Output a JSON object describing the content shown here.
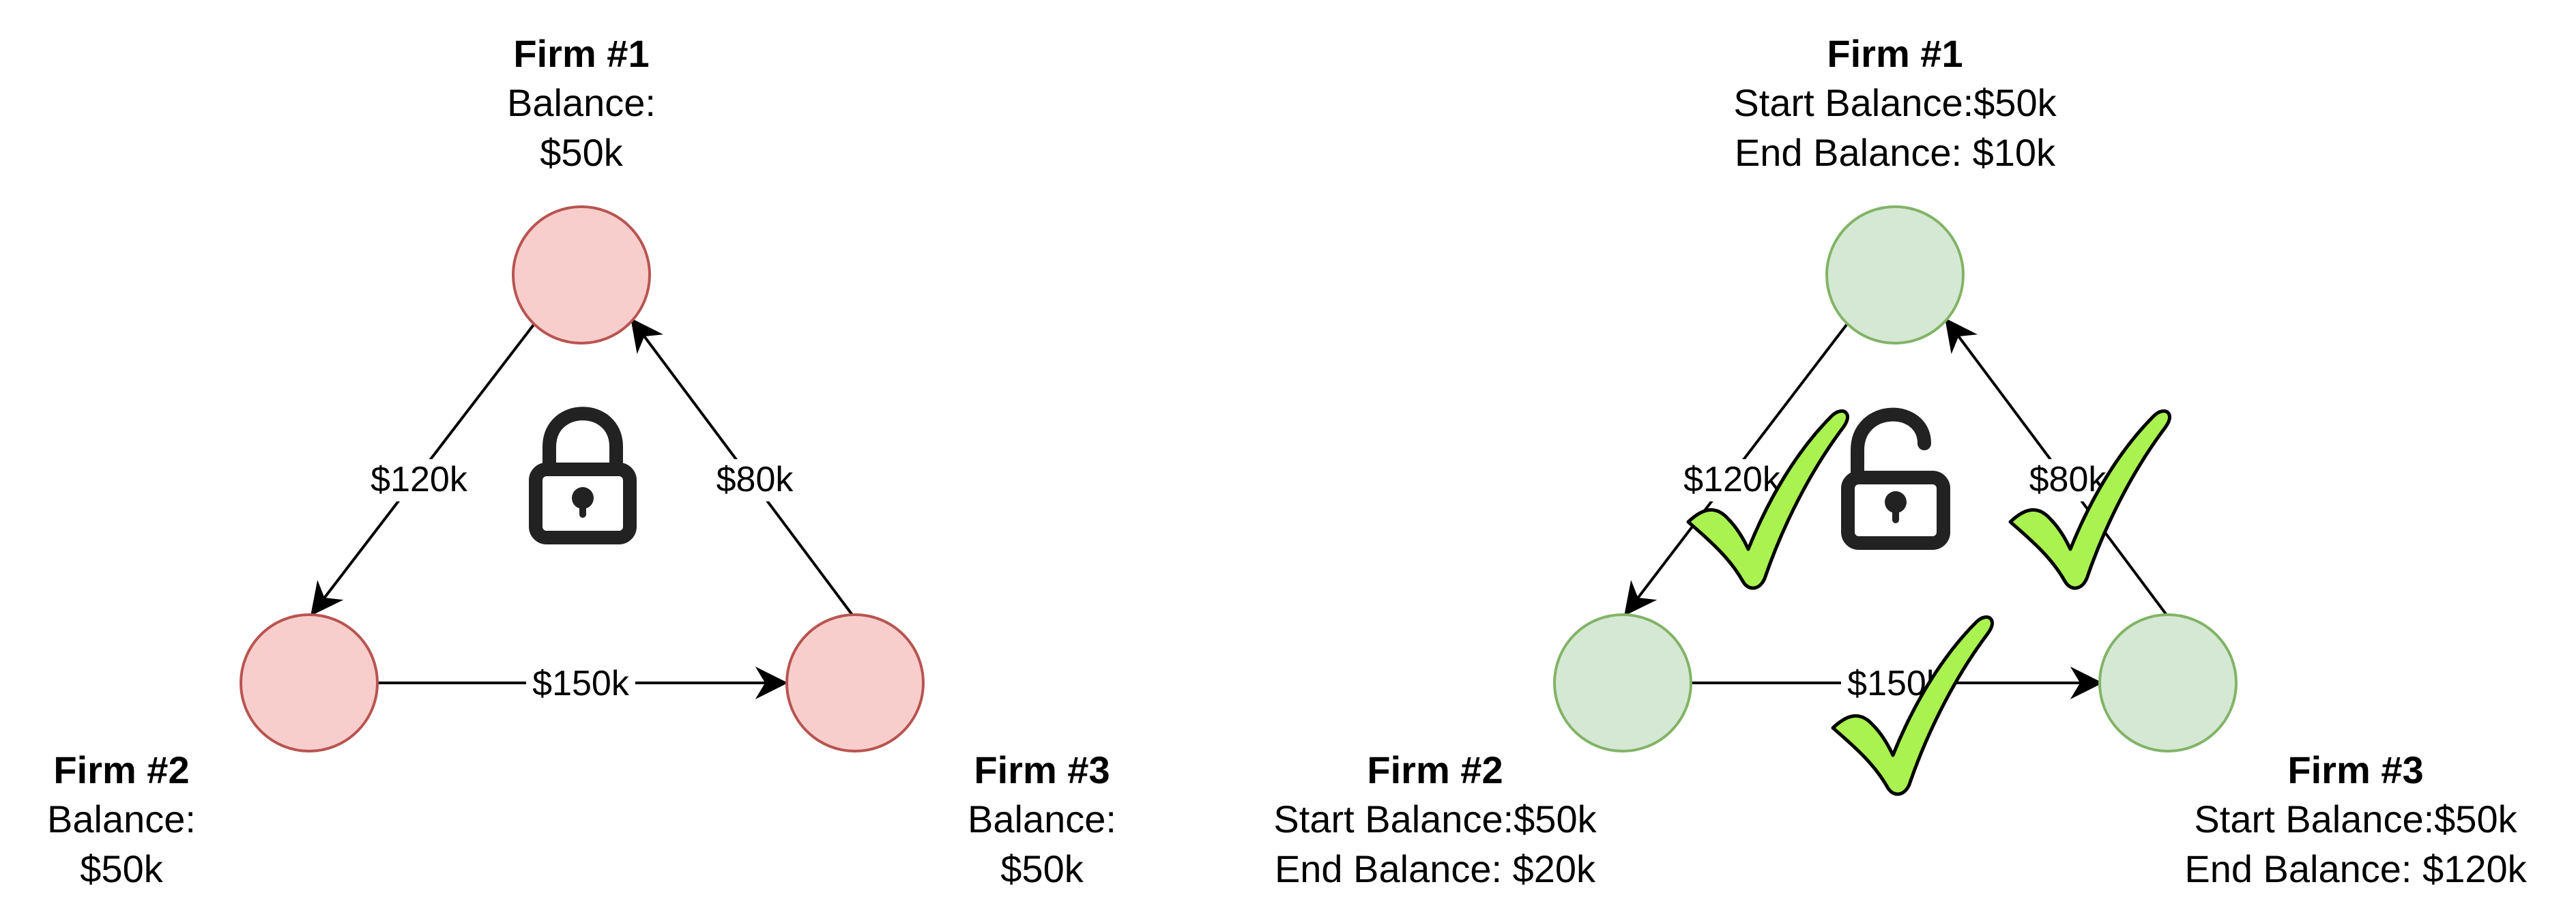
{
  "colors": {
    "locked_fill": "#f8cecc",
    "locked_stroke": "#b85450",
    "settled_fill": "#d5e8d4",
    "settled_stroke": "#82b366",
    "check_fill": "#a9f24f",
    "edge": "#000000",
    "lock_icon": "#222222"
  },
  "left_panel": {
    "lock_icon": "locked-padlock",
    "firms": [
      {
        "name": "Firm #1",
        "line1": "Balance:",
        "line2": "$50k"
      },
      {
        "name": "Firm #2",
        "line1": "Balance:",
        "line2": "$50k"
      },
      {
        "name": "Firm #3",
        "line1": "Balance:",
        "line2": "$50k"
      }
    ],
    "edges": [
      {
        "from": "Firm #1",
        "to": "Firm #2",
        "label": "$120k"
      },
      {
        "from": "Firm #3",
        "to": "Firm #1",
        "label": "$80k"
      },
      {
        "from": "Firm #2",
        "to": "Firm #3",
        "label": "$150k"
      }
    ]
  },
  "right_panel": {
    "lock_icon": "unlocked-padlock",
    "check_icon": "checkmark",
    "firms": [
      {
        "name": "Firm #1",
        "line1": "Start Balance:$50k",
        "line2": "End Balance: $10k"
      },
      {
        "name": "Firm #2",
        "line1": "Start Balance:$50k",
        "line2": "End Balance: $20k"
      },
      {
        "name": "Firm #3",
        "line1": "Start Balance:$50k",
        "line2": "End Balance: $120k"
      }
    ],
    "edges": [
      {
        "from": "Firm #1",
        "to": "Firm #2",
        "label": "$120k"
      },
      {
        "from": "Firm #3",
        "to": "Firm #1",
        "label": "$80k"
      },
      {
        "from": "Firm #2",
        "to": "Firm #3",
        "label": "$150k"
      }
    ]
  }
}
